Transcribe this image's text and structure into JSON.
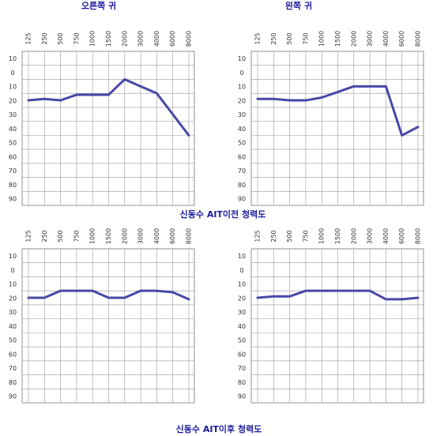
{
  "headers": [
    "오른쪽 귀",
    "왼쪽 귀"
  ],
  "captions": [
    "신동수 AIT이전 청력도",
    "신동수 AIT이후 청력도"
  ],
  "chart_data": [
    {
      "type": "line",
      "categories": [
        "125",
        "250",
        "500",
        "750",
        "1000",
        "1500",
        "2000",
        "3000",
        "4000",
        "6000",
        "8000"
      ],
      "values": [
        15,
        14,
        15,
        11,
        11,
        11,
        0,
        5,
        10,
        25,
        40
      ],
      "color": "#4848a8",
      "ylim": [
        90,
        -20
      ],
      "yticks": [
        {
          "value": -10,
          "label": "10"
        },
        0,
        10,
        20,
        30,
        40,
        50,
        60,
        70,
        80,
        90
      ],
      "grid": true
    },
    {
      "type": "line",
      "categories": [
        "125",
        "250",
        "500",
        "750",
        "1000",
        "1500",
        "2000",
        "3000",
        "4000",
        "6000",
        "8000"
      ],
      "values": [
        14,
        14,
        15,
        15,
        13,
        9,
        5,
        5,
        5,
        40,
        34
      ],
      "color": "#4848a8",
      "ylim": [
        90,
        -20
      ],
      "yticks": [
        {
          "value": -10,
          "label": "10"
        },
        0,
        10,
        20,
        30,
        40,
        50,
        60,
        70,
        80,
        90
      ],
      "grid": true
    },
    {
      "type": "line",
      "categories": [
        "125",
        "250",
        "500",
        "750",
        "1000",
        "1500",
        "2000",
        "3000",
        "4000",
        "6000",
        "8000"
      ],
      "values": [
        15,
        15,
        10,
        10,
        10,
        15,
        15,
        10,
        10,
        11,
        16
      ],
      "color": "#4848a8",
      "ylim": [
        90,
        -20
      ],
      "yticks": [
        {
          "value": -10,
          "label": "10"
        },
        0,
        10,
        20,
        30,
        40,
        50,
        60,
        70,
        80,
        90
      ],
      "grid": true
    },
    {
      "type": "line",
      "categories": [
        "125",
        "250",
        "500",
        "750",
        "1000",
        "1500",
        "2000",
        "3000",
        "4000",
        "6000",
        "8000"
      ],
      "values": [
        15,
        14,
        14,
        10,
        10,
        10,
        10,
        10,
        16,
        16,
        15
      ],
      "color": "#4848a8",
      "ylim": [
        90,
        -20
      ],
      "yticks": [
        {
          "value": -10,
          "label": "10"
        },
        0,
        10,
        20,
        30,
        40,
        50,
        60,
        70,
        80,
        90
      ],
      "grid": true
    }
  ]
}
